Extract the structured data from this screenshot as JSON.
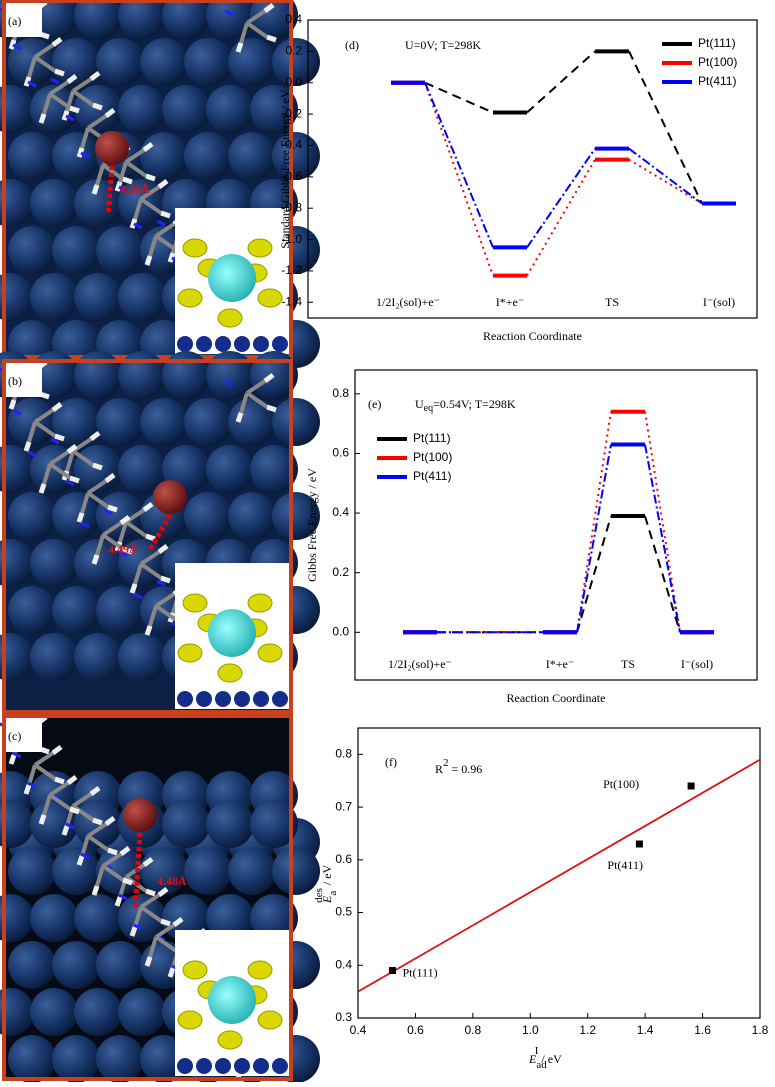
{
  "panels": [
    {
      "label": "(a)",
      "distance": "4.20Å"
    },
    {
      "label": "(b)",
      "distance": "4.49Å"
    },
    {
      "label": "(c)",
      "distance": "4.48Å"
    }
  ],
  "chart_data": [
    {
      "type": "line",
      "panel": "(d)",
      "annotation": {
        "pre": "U=0V;  T=298K",
        "sub": "",
        "post": ""
      },
      "ylabel": "Standard Gibbs Free Energy / eV",
      "xlabel": "Reaction Coordinate",
      "categories": [
        "1/2I₂(sol)+e⁻",
        "I*+e⁻",
        "TS",
        "I⁻(sol)"
      ],
      "series": [
        {
          "name": "Pt(111)",
          "color": "#000000",
          "values": [
            0,
            -0.19,
            0.2,
            -0.77
          ]
        },
        {
          "name": "Pt(100)",
          "color": "#ff0000",
          "values": [
            0,
            -1.23,
            -0.49,
            -0.77
          ]
        },
        {
          "name": "Pt(411)",
          "color": "#0000ff",
          "values": [
            0,
            -1.05,
            -0.42,
            -0.77
          ]
        }
      ],
      "ylim": [
        -1.5,
        0.4
      ],
      "yticks": [
        -1.4,
        -1.2,
        {
          "value": -1,
          "label": "-1.0"
        },
        -0.8,
        -0.6,
        -0.4,
        -0.2,
        {
          "value": 0,
          "label": "0.0"
        },
        0.2,
        0.4
      ],
      "legend": "upper right"
    },
    {
      "type": "line",
      "panel": "(e)",
      "annotation": {
        "pre": "U",
        "sub": "eq",
        "post": "=0.54V;  T=298K"
      },
      "ylabel": "Gibbs Free Energy / eV",
      "xlabel": "Reaction Coordinate",
      "categories": [
        "1/2I₂(sol)+e⁻",
        "I*+e⁻",
        "TS",
        "I⁻(sol)"
      ],
      "series": [
        {
          "name": "Pt(111)",
          "color": "#000000",
          "values": [
            0,
            0,
            0.39,
            0
          ]
        },
        {
          "name": "Pt(100)",
          "color": "#ff0000",
          "values": [
            0,
            0,
            0.74,
            0
          ]
        },
        {
          "name": "Pt(411)",
          "color": "#0000ff",
          "values": [
            0,
            0,
            0.63,
            0
          ]
        }
      ],
      "ylim": [
        -0.16,
        0.88
      ],
      "yticks": [
        {
          "value": 0,
          "label": "0.0"
        },
        0.2,
        0.4,
        0.6,
        0.8
      ],
      "legend": "upper left"
    },
    {
      "type": "scatter",
      "panel": "(f)",
      "annotation": {
        "pre": "R",
        "sup": "2",
        "post": " = 0.96"
      },
      "xlabel": {
        "main": "E",
        "sub": "ad",
        "sup": "I",
        "unit": " / eV"
      },
      "ylabel": {
        "main": "E",
        "sub": "a",
        "sup": "des",
        "unit": " / eV"
      },
      "x": [
        0.52,
        1.56,
        1.38
      ],
      "values": [
        0.39,
        0.74,
        0.63
      ],
      "labels": [
        "Pt(111)",
        "Pt(100)",
        "Pt(411)"
      ],
      "color": "#000000",
      "fit": {
        "x": [
          0.4,
          1.8
        ],
        "y": [
          0.35,
          0.79
        ],
        "color": "#dd1111"
      },
      "xlim": [
        0.4,
        1.8
      ],
      "xticks": [
        0.4,
        0.6,
        0.8,
        {
          "value": 1,
          "label": "1.0"
        },
        1.2,
        1.4,
        1.6,
        1.8
      ],
      "ylim": [
        0.3,
        0.85
      ],
      "yticks": [
        0.3,
        0.4,
        0.5,
        0.6,
        0.7,
        0.8
      ]
    }
  ]
}
